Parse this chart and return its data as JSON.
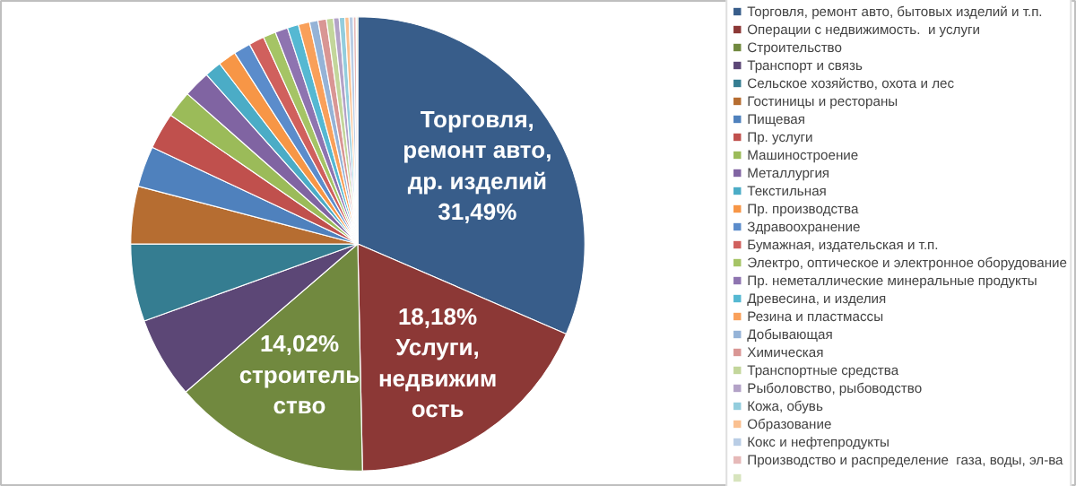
{
  "chart_data": {
    "type": "pie",
    "categories": [
      "Торговля, ремонт авто, бытовых изделий и т.п.",
      "Операции с недвижимость.  и услуги",
      "Строительство",
      "Транспорт и связь",
      "Сельское хозяйство, охота и лес",
      "Гостиницы и рестораны",
      "Пищевая",
      "Пр. услуги",
      "Машиностроение",
      "Металлургия",
      "Текстильная",
      "Пр. производства",
      "Здравоохранение",
      "Бумажная, издательская и т.п.",
      "Электро, оптическое и электронное оборудование",
      "Пр. неметаллические минеральные продукты",
      "Древесина, и изделия",
      "Резина и пластмассы",
      "Добывающая",
      "Химическая",
      "Транспортные средства",
      "Рыболовство, рыбоводство",
      "Кожа, обувь",
      "Образование",
      "Кокс и нефтепродукты",
      "Производство и распределение  газа, воды, эл-ва",
      null
    ],
    "values": [
      31.49,
      18.18,
      14.02,
      5.8,
      5.5,
      4.1,
      2.9,
      2.6,
      1.9,
      1.9,
      1.2,
      1.3,
      1.2,
      1.1,
      0.9,
      0.9,
      0.8,
      0.8,
      0.6,
      0.6,
      0.5,
      0.4,
      0.4,
      0.3,
      0.3,
      0.2,
      0.11
    ],
    "colors": [
      "#385d8a",
      "#8c3836",
      "#71893f",
      "#5c4776",
      "#357d91",
      "#b66d31",
      "#4f81bd",
      "#c0504d",
      "#9bbb59",
      "#8064a2",
      "#4bacc6",
      "#f79646",
      "#5b8ccb",
      "#d0605d",
      "#a5c465",
      "#8e74b0",
      "#55b8d2",
      "#f9a05a",
      "#95b3d7",
      "#d99694",
      "#c3d69b",
      "#b3a2c7",
      "#93cddd",
      "#fac090",
      "#b9cde5",
      "#e6b9b8",
      "#d7e4bd"
    ],
    "value_labels": [
      "Торговля,\nремонт авто,\nдр. изделий\n31,49%",
      "18,18%\nУслуги,\nнедвижим\nость",
      "14,02%\nстроитель\nство",
      null,
      null,
      null,
      null,
      null,
      null,
      null,
      null,
      null,
      null,
      null,
      null,
      null,
      null,
      null,
      null,
      null,
      null,
      null,
      null,
      null,
      null,
      null,
      null
    ],
    "legend": "right"
  }
}
